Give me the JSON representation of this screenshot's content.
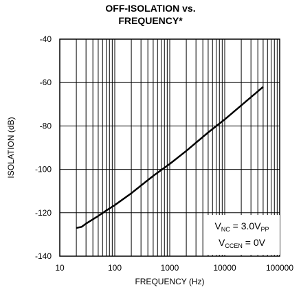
{
  "chart_data": {
    "type": "line",
    "title_line1": "OFF-ISOLATION vs.",
    "title_line2": "FREQUENCY*",
    "xlabel": "FREQUENCY (Hz)",
    "ylabel": "ISOLATION (dB)",
    "x_scale": "log",
    "xlim": [
      10,
      100000
    ],
    "ylim": [
      -140,
      -40
    ],
    "x_ticks": [
      10,
      100,
      1000,
      10000,
      100000
    ],
    "x_tick_labels": [
      "10",
      "100",
      "1000",
      "10000",
      "100000"
    ],
    "y_ticks": [
      -40,
      -60,
      -80,
      -100,
      -120,
      -140
    ],
    "y_tick_labels": [
      "-40",
      "-60",
      "-80",
      "-100",
      "-120",
      "-140"
    ],
    "grid": true,
    "annotation": {
      "line1_main": "V",
      "line1_sub": "NC",
      "line1_rest": " = 3.0V",
      "line1_sub2": "PP",
      "line2_main": "V",
      "line2_sub": "CCEN",
      "line2_rest": " = 0V"
    },
    "series": [
      {
        "x": [
          20,
          25,
          30,
          40,
          50,
          70,
          100,
          200,
          500,
          1000,
          2000,
          5000,
          10000,
          20000,
          50000
        ],
        "y": [
          -127,
          -126.5,
          -125,
          -123,
          -121.5,
          -119,
          -116.5,
          -111,
          -103,
          -97.5,
          -91.5,
          -83,
          -77,
          -70.5,
          -62
        ]
      }
    ]
  }
}
